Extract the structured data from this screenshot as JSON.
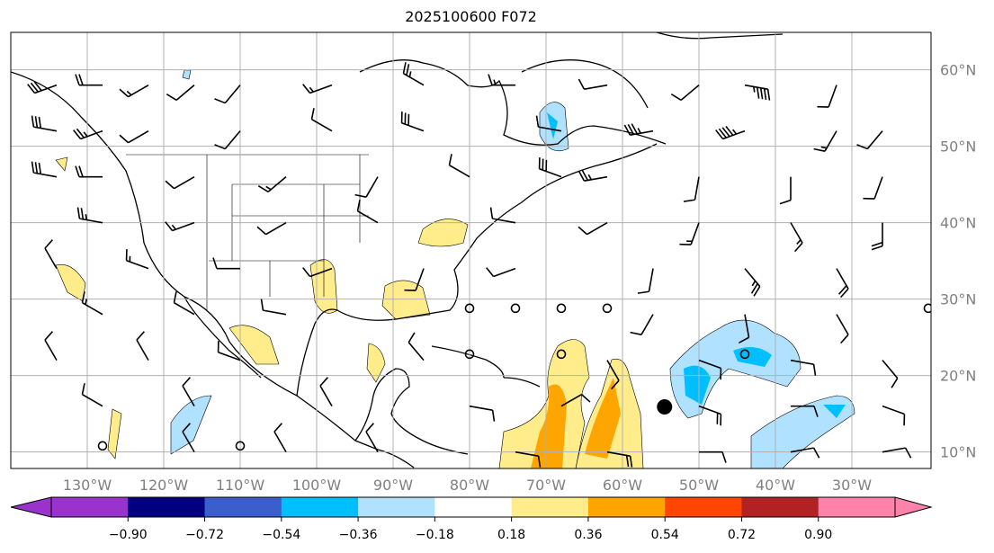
{
  "title": "2025100600 F072",
  "lon_labels": [
    "130°W",
    "120°W",
    "110°W",
    "100°W",
    "90°W",
    "80°W",
    "70°W",
    "60°W",
    "50°W",
    "40°W",
    "30°W"
  ],
  "lat_labels": [
    "60°N",
    "50°N",
    "40°N",
    "30°N",
    "20°N",
    "10°N"
  ],
  "colorbar": {
    "ticks": [
      "−0.90",
      "−0.72",
      "−0.54",
      "−0.36",
      "−0.18",
      "0.18",
      "0.36",
      "0.54",
      "0.72",
      "0.90"
    ],
    "colors": [
      "#9933cc",
      "#000080",
      "#3a5fcd",
      "#00bfff",
      "#b0e2ff",
      "#ffffff",
      "#ffec8b",
      "#ffa500",
      "#ff4500",
      "#b22222",
      "#ff82ab"
    ]
  },
  "calm_points": [
    [
      -80,
      28.8
    ],
    [
      -74,
      28.8
    ],
    [
      -68,
      28.8
    ],
    [
      -62,
      28.8
    ],
    [
      -80,
      22.8
    ],
    [
      -68,
      22.8
    ],
    [
      -44,
      22.8
    ],
    [
      -128,
      10.8
    ],
    [
      -110,
      10.8
    ],
    [
      -20,
      28.8
    ]
  ],
  "storm_center": [
    -54.5,
    15.9
  ],
  "barbs": [
    [
      -134,
      58,
      250,
      30
    ],
    [
      -128,
      58,
      270,
      20
    ],
    [
      -122,
      58,
      240,
      15
    ],
    [
      -116,
      58,
      230,
      10
    ],
    [
      -110,
      58,
      220,
      10
    ],
    [
      -98,
      58,
      250,
      15
    ],
    [
      -86,
      58,
      300,
      25
    ],
    [
      -74,
      58,
      270,
      15
    ],
    [
      -62,
      58,
      260,
      10
    ],
    [
      -50,
      58,
      230,
      10
    ],
    [
      -44,
      58,
      100,
      45
    ],
    [
      -32,
      58,
      200,
      10
    ],
    [
      -134,
      52,
      280,
      30
    ],
    [
      -128,
      52,
      250,
      25
    ],
    [
      -122,
      52,
      240,
      10
    ],
    [
      -110,
      52,
      220,
      10
    ],
    [
      -98,
      52,
      300,
      10
    ],
    [
      -86,
      52,
      290,
      30
    ],
    [
      -68,
      52,
      280,
      10
    ],
    [
      -56,
      52,
      260,
      35
    ],
    [
      -44,
      52,
      250,
      45
    ],
    [
      -32,
      52,
      210,
      15
    ],
    [
      -26,
      52,
      220,
      10
    ],
    [
      -134,
      46,
      280,
      30
    ],
    [
      -128,
      46,
      270,
      20
    ],
    [
      -116,
      46,
      240,
      10
    ],
    [
      -104,
      46,
      230,
      15
    ],
    [
      -92,
      46,
      210,
      10
    ],
    [
      -80,
      46,
      300,
      10
    ],
    [
      -68,
      46,
      290,
      30
    ],
    [
      -62,
      46,
      260,
      25
    ],
    [
      -50,
      46,
      190,
      10
    ],
    [
      -38,
      46,
      180,
      10
    ],
    [
      -26,
      46,
      200,
      10
    ],
    [
      -128,
      40,
      280,
      25
    ],
    [
      -116,
      40,
      250,
      15
    ],
    [
      -104,
      40,
      240,
      10
    ],
    [
      -92,
      40,
      300,
      10
    ],
    [
      -74,
      40,
      280,
      10
    ],
    [
      -62,
      40,
      240,
      10
    ],
    [
      -50,
      40,
      200,
      15
    ],
    [
      -38,
      40,
      150,
      15
    ],
    [
      -26,
      40,
      180,
      20
    ],
    [
      -134,
      34,
      330,
      10
    ],
    [
      -122,
      34,
      290,
      15
    ],
    [
      -110,
      34,
      270,
      10
    ],
    [
      -98,
      34,
      250,
      10
    ],
    [
      -86,
      34,
      200,
      10
    ],
    [
      -74,
      34,
      250,
      10
    ],
    [
      -56,
      34,
      190,
      10
    ],
    [
      -44,
      34,
      140,
      25
    ],
    [
      -32,
      34,
      150,
      20
    ],
    [
      -128,
      28,
      300,
      15
    ],
    [
      -116,
      28,
      300,
      10
    ],
    [
      -104,
      28,
      280,
      10
    ],
    [
      -56,
      28,
      210,
      10
    ],
    [
      -44,
      28,
      170,
      10
    ],
    [
      -32,
      28,
      150,
      10
    ],
    [
      -134,
      22,
      330,
      10
    ],
    [
      -122,
      22,
      330,
      10
    ],
    [
      -110,
      22,
      290,
      10
    ],
    [
      -86,
      22,
      320,
      10
    ],
    [
      -62,
      22,
      150,
      10
    ],
    [
      -50,
      22,
      110,
      10
    ],
    [
      -38,
      22,
      100,
      10
    ],
    [
      -26,
      22,
      140,
      10
    ],
    [
      -128,
      16,
      300,
      10
    ],
    [
      -116,
      16,
      330,
      10
    ],
    [
      -98,
      16,
      330,
      10
    ],
    [
      -80,
      16,
      100,
      10
    ],
    [
      -68,
      16,
      60,
      10
    ],
    [
      -50,
      16,
      110,
      20
    ],
    [
      -38,
      16,
      90,
      10
    ],
    [
      -26,
      16,
      110,
      10
    ],
    [
      -116,
      10,
      330,
      10
    ],
    [
      -104,
      10,
      330,
      10
    ],
    [
      -92,
      10,
      330,
      10
    ],
    [
      -74,
      10,
      100,
      10
    ],
    [
      -62,
      10,
      100,
      20
    ],
    [
      -50,
      10,
      90,
      10
    ],
    [
      -38,
      10,
      80,
      10
    ],
    [
      -26,
      10,
      80,
      10
    ]
  ]
}
